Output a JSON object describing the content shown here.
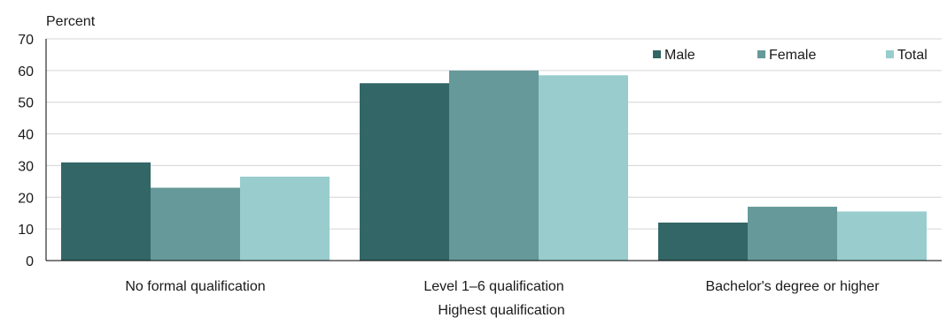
{
  "chart_data": {
    "type": "bar",
    "title": "",
    "ylabel": "Percent",
    "xlabel": "Highest qualification",
    "ylim": [
      0,
      70
    ],
    "yticks": [
      0,
      10,
      20,
      30,
      40,
      50,
      60,
      70
    ],
    "grid": true,
    "legend_position": "top-right",
    "categories": [
      "No formal qualification",
      "Level 1–6 qualification",
      "Bachelor's degree or higher"
    ],
    "series": [
      {
        "name": "Male",
        "color": "#336666",
        "values": [
          31,
          56,
          12
        ]
      },
      {
        "name": "Female",
        "color": "#669999",
        "values": [
          23,
          60,
          17
        ]
      },
      {
        "name": "Total",
        "color": "#99cccc",
        "values": [
          26.5,
          58.5,
          15.5
        ]
      }
    ]
  }
}
